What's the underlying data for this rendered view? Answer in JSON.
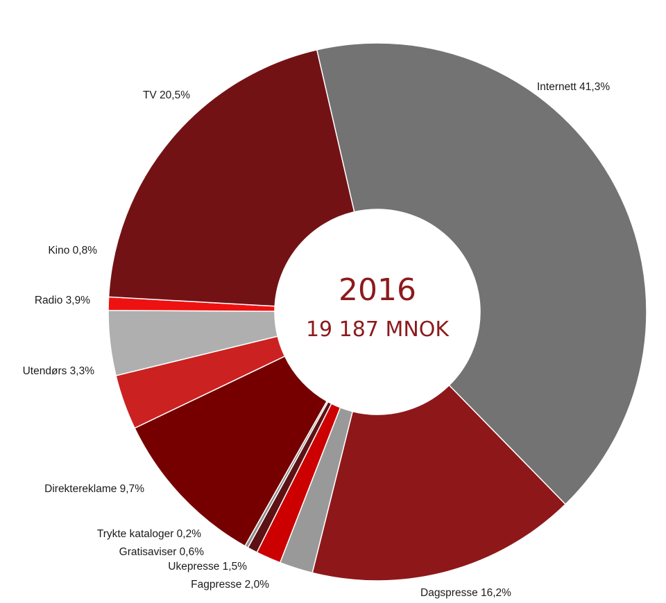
{
  "chart_data": {
    "type": "pie",
    "title": "",
    "center": {
      "year": "2016",
      "total": "19 187 MNOK",
      "color": "#8c1a1c"
    },
    "slices": [
      {
        "name": "Internett",
        "value": 41.3,
        "label": "Internett 41,3%",
        "color": "#737373"
      },
      {
        "name": "Dagspresse",
        "value": 16.2,
        "label": "Dagspresse 16,2%",
        "color": "#8e171a"
      },
      {
        "name": "Fagpresse",
        "value": 2.0,
        "label": "Fagpresse 2,0%",
        "color": "#999999"
      },
      {
        "name": "Ukepresse",
        "value": 1.5,
        "label": "Ukepresse 1,5%",
        "color": "#cc0000"
      },
      {
        "name": "Gratisaviser",
        "value": 0.6,
        "label": "Gratisaviser 0,6%",
        "color": "#5c1214"
      },
      {
        "name": "Trykte kataloger",
        "value": 0.2,
        "label": "Trykte kataloger 0,2%",
        "color": "#8c8c8c"
      },
      {
        "name": "Direktereklame",
        "value": 9.7,
        "label": "Direktereklame 9,7%",
        "color": "#760000"
      },
      {
        "name": "Utendørs",
        "value": 3.3,
        "label": "Utendørs  3,3%",
        "color": "#cc2121"
      },
      {
        "name": "Radio",
        "value": 3.9,
        "label": "Radio 3,9%",
        "color": "#afafaf"
      },
      {
        "name": "Kino",
        "value": 0.8,
        "label": "Kino 0,8%",
        "color": "#ee1111"
      },
      {
        "name": "TV",
        "value": 20.5,
        "label": "TV 20,5%",
        "color": "#731215"
      }
    ]
  }
}
